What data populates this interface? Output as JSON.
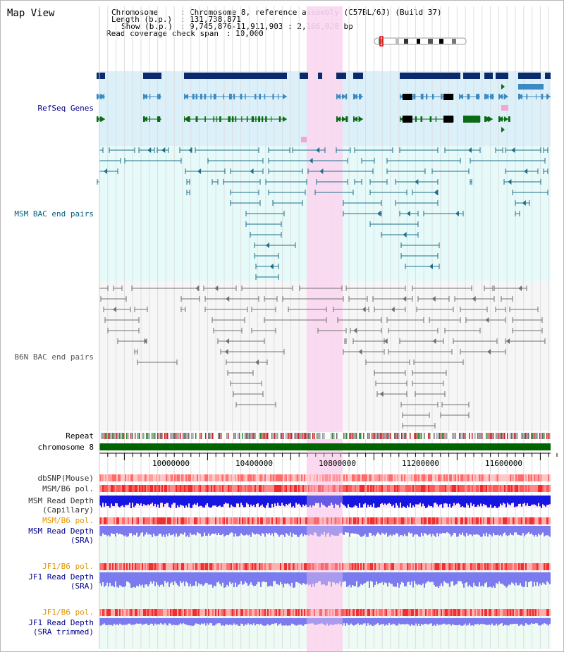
{
  "view_title": "Map View",
  "header": {
    "chromosome_key": "Chromosome",
    "chromosome_value": "Chromosome 8, reference assembly (C57BL/6J) (Build 37)",
    "length_key": "Length (b.p.)",
    "length_value": "131,738,871",
    "show_key": "Show (b.p.)",
    "show_value": "9,745,876-11,911,903 : 2,166,028 bp",
    "coverage_key": "Read coverage check span",
    "coverage_value": "10,000"
  },
  "tracks": {
    "refseq": "RefSeq Genes",
    "msm_bac": "MSM BAC end pairs",
    "b6n_bac": "B6N BAC end pairs",
    "repeat": "Repeat",
    "chromosome": "chromosome 8",
    "dbsnp": "dbSNP(Mouse)",
    "msm_b6_pol_1": "MSM/B6 pol.",
    "msm_depth_cap_1": "MSM Read Depth",
    "msm_depth_cap_2": "(Capillary)",
    "msm_b6_pol_2": "MSM/B6 pol.",
    "msm_depth_sra_1": "MSM Read Depth",
    "msm_depth_sra_2": "(SRA)",
    "jf1_b6_pol_1": "JF1/B6 pol.",
    "jf1_depth_sra_1": "JF1 Read Depth",
    "jf1_depth_sra_2": "(SRA)",
    "jf1_b6_pol_2": "JF1/B6 pol.",
    "jf1_depth_trim_1": "JF1 Read Depth",
    "jf1_depth_trim_2": "(SRA trimmed)"
  },
  "ruler": {
    "ticks": [
      "10000000",
      "10400000",
      "10800000",
      "11200000",
      "11600000"
    ]
  },
  "colors": {
    "refseq_dark": "#0b2a6b",
    "refseq_mid": "#3b8ac1",
    "refseq_green": "#0b6b16",
    "msm_bac": "#1f6f8b",
    "b6n_bac": "#707070",
    "highlight": "#fbd7ef",
    "chromosome_bar": "#006400",
    "depth_blue": "#1616e0",
    "depth_sra": "#7b7bef",
    "pol_red": "#f05050",
    "label_blue": "#00008b",
    "label_teal": "#005f7f",
    "label_orange": "#e69500"
  }
}
